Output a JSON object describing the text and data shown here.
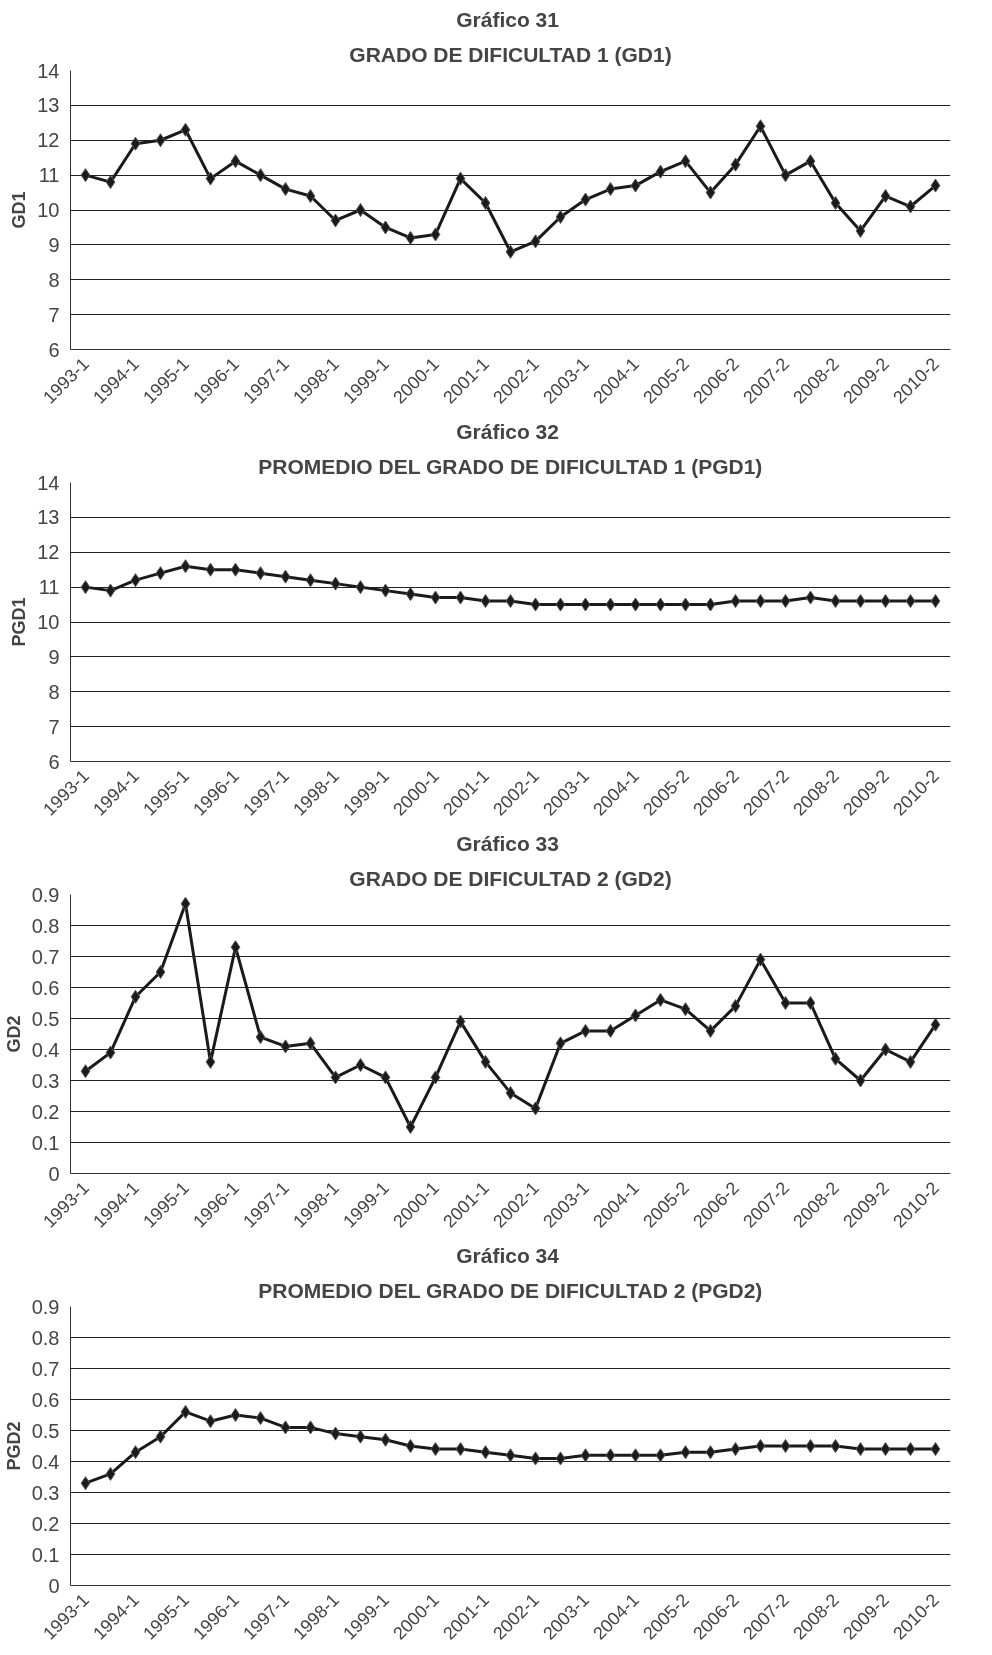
{
  "chart_data": [
    {
      "type": "line",
      "title": "Gráfico  31",
      "subtitle": "GRADO DE DIFICULTAD 1 (GD1)",
      "ylabel": "GD1",
      "categories": [
        "1993-1",
        null,
        "1994-1",
        null,
        "1995-1",
        null,
        "1996-1",
        null,
        "1997-1",
        null,
        "1998-1",
        null,
        "1999-1",
        null,
        "2000-1",
        null,
        "2001-1",
        null,
        "2002-1",
        null,
        "2003-1",
        null,
        "2004-1",
        null,
        "2005-2",
        null,
        "2006-2",
        null,
        "2007-2",
        null,
        "2008-2",
        null,
        "2009-2",
        null,
        "2010-2"
      ],
      "series": [
        {
          "color": "#1a1a1a",
          "values": [
            11.0,
            10.8,
            11.9,
            12.0,
            12.3,
            10.9,
            11.4,
            11.0,
            10.6,
            10.4,
            9.7,
            10.0,
            9.5,
            9.2,
            9.3,
            10.9,
            10.2,
            8.8,
            9.1,
            9.8,
            10.3,
            10.6,
            10.7,
            11.1,
            11.4,
            10.5,
            11.3,
            12.4,
            11.0,
            11.4,
            10.2,
            9.4,
            10.4,
            10.1,
            10.7
          ]
        }
      ],
      "ylim": [
        6,
        14
      ],
      "yticks": [
        6,
        7,
        8,
        9,
        10,
        11,
        12,
        13,
        14
      ],
      "grid": "y",
      "marker": "diamond",
      "line_style": "solid"
    },
    {
      "type": "line",
      "title": "Gráfico  32",
      "subtitle": "PROMEDIO DEL GRADO DE DIFICULTAD 1 (PGD1)",
      "ylabel": "PGD1",
      "categories": [
        "1993-1",
        null,
        "1994-1",
        null,
        "1995-1",
        null,
        "1996-1",
        null,
        "1997-1",
        null,
        "1998-1",
        null,
        "1999-1",
        null,
        "2000-1",
        null,
        "2001-1",
        null,
        "2002-1",
        null,
        "2003-1",
        null,
        "2004-1",
        null,
        "2005-2",
        null,
        "2006-2",
        null,
        "2007-2",
        null,
        "2008-2",
        null,
        "2009-2",
        null,
        "2010-2"
      ],
      "series": [
        {
          "color": "#1a1a1a",
          "values": [
            11.0,
            10.9,
            11.2,
            11.4,
            11.6,
            11.5,
            11.5,
            11.4,
            11.3,
            11.2,
            11.1,
            11.0,
            10.9,
            10.8,
            10.7,
            10.7,
            10.6,
            10.6,
            10.5,
            10.5,
            10.5,
            10.5,
            10.5,
            10.5,
            10.5,
            10.5,
            10.6,
            10.6,
            10.6,
            10.7,
            10.6,
            10.6,
            10.6,
            10.6,
            10.6
          ]
        }
      ],
      "ylim": [
        6,
        14
      ],
      "yticks": [
        6,
        7,
        8,
        9,
        10,
        11,
        12,
        13,
        14
      ],
      "grid": "y",
      "marker": "diamond",
      "line_style": "solid"
    },
    {
      "type": "line",
      "title": "Gráfico  33",
      "subtitle": "GRADO DE DIFICULTAD 2 (GD2)",
      "ylabel": "GD2",
      "categories": [
        "1993-1",
        null,
        "1994-1",
        null,
        "1995-1",
        null,
        "1996-1",
        null,
        "1997-1",
        null,
        "1998-1",
        null,
        "1999-1",
        null,
        "2000-1",
        null,
        "2001-1",
        null,
        "2002-1",
        null,
        "2003-1",
        null,
        "2004-1",
        null,
        "2005-2",
        null,
        "2006-2",
        null,
        "2007-2",
        null,
        "2008-2",
        null,
        "2009-2",
        null,
        "2010-2"
      ],
      "series": [
        {
          "color": "#1a1a1a",
          "values": [
            0.33,
            0.39,
            0.57,
            0.65,
            0.87,
            0.36,
            0.73,
            0.44,
            0.41,
            0.42,
            0.31,
            0.35,
            0.31,
            0.15,
            0.31,
            0.49,
            0.36,
            0.26,
            0.21,
            0.42,
            0.46,
            0.46,
            0.51,
            0.56,
            0.53,
            0.46,
            0.54,
            0.69,
            0.55,
            0.55,
            0.37,
            0.3,
            0.4,
            0.36,
            0.48
          ]
        }
      ],
      "ylim": [
        0,
        0.9
      ],
      "yticks": [
        0,
        0.1,
        0.2,
        0.3,
        0.4,
        0.5,
        0.6,
        0.7,
        0.8,
        0.9
      ],
      "grid": "y",
      "marker": "diamond",
      "line_style": "solid"
    },
    {
      "type": "line",
      "title": "Gráfico  34",
      "subtitle": "PROMEDIO DEL GRADO DE DIFICULTAD 2 (PGD2)",
      "ylabel": "PGD2",
      "categories": [
        "1993-1",
        null,
        "1994-1",
        null,
        "1995-1",
        null,
        "1996-1",
        null,
        "1997-1",
        null,
        "1998-1",
        null,
        "1999-1",
        null,
        "2000-1",
        null,
        "2001-1",
        null,
        "2002-1",
        null,
        "2003-1",
        null,
        "2004-1",
        null,
        "2005-2",
        null,
        "2006-2",
        null,
        "2007-2",
        null,
        "2008-2",
        null,
        "2009-2",
        null,
        "2010-2"
      ],
      "series": [
        {
          "color": "#1a1a1a",
          "values": [
            0.33,
            0.36,
            0.43,
            0.48,
            0.56,
            0.53,
            0.55,
            0.54,
            0.51,
            0.51,
            0.49,
            0.48,
            0.47,
            0.45,
            0.44,
            0.44,
            0.43,
            0.42,
            0.41,
            0.41,
            0.42,
            0.42,
            0.42,
            0.42,
            0.43,
            0.43,
            0.44,
            0.45,
            0.45,
            0.45,
            0.45,
            0.44,
            0.44,
            0.44,
            0.44
          ]
        }
      ],
      "ylim": [
        0,
        0.9
      ],
      "yticks": [
        0,
        0.1,
        0.2,
        0.3,
        0.4,
        0.5,
        0.6,
        0.7,
        0.8,
        0.9
      ],
      "grid": "y",
      "marker": "diamond",
      "line_style": "solid"
    }
  ]
}
